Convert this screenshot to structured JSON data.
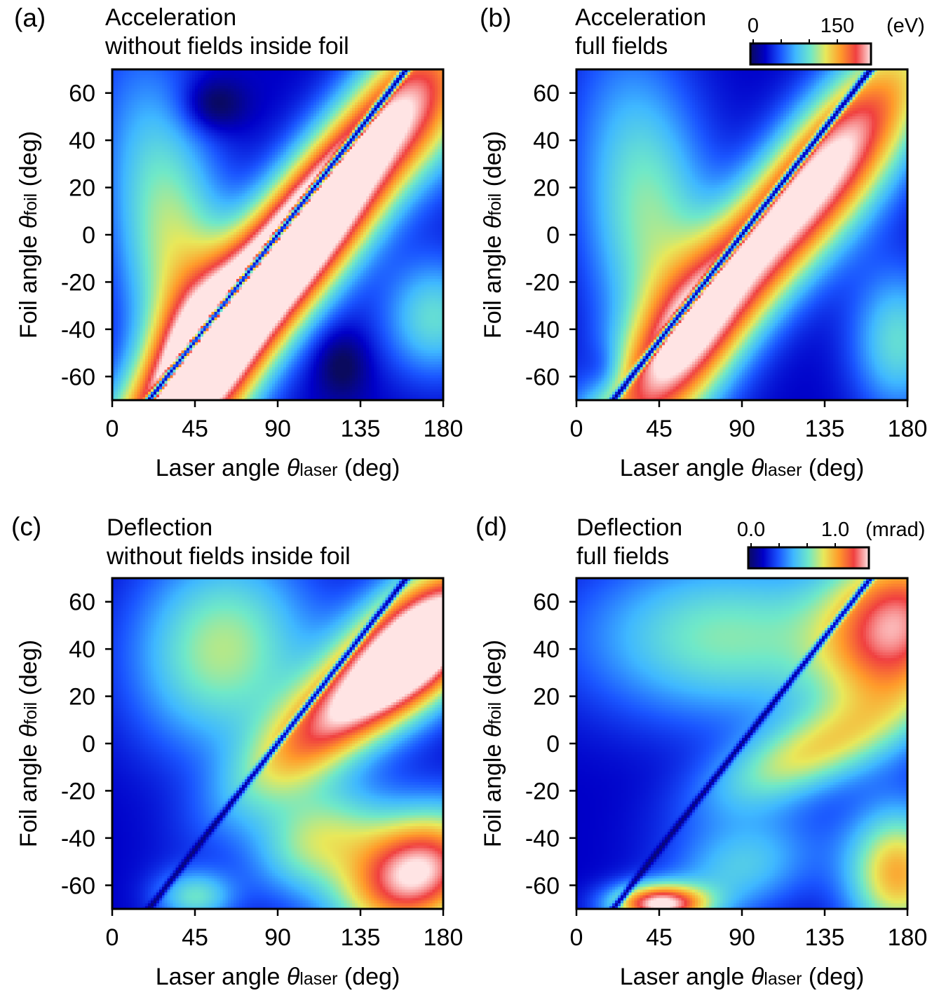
{
  "colormap": {
    "name": "rainbow",
    "stops": [
      "#0a0a5e",
      "#0000c8",
      "#1a55ff",
      "#3fb8ff",
      "#6fe8c8",
      "#e8e85a",
      "#ff9a2a",
      "#f04040",
      "#ffe4e4"
    ]
  },
  "chart_data": [
    {
      "type": "heatmap",
      "panel": "(a)",
      "title": [
        "Acceleration",
        "without fields inside foil"
      ],
      "xlabel": "Laser angle θlaser (deg)",
      "ylabel": "Foil angle θfoil (deg)",
      "xlim": [
        0,
        180
      ],
      "ylim": [
        -70,
        70
      ],
      "xticks": [
        "0",
        "45",
        "90",
        "135",
        "180"
      ],
      "yticks": [
        "60",
        "40",
        "20",
        "0",
        "-20",
        "-40",
        "-60"
      ],
      "value_range": [
        0,
        150
      ],
      "features": {
        "diagonal_ridge_peak": 150,
        "lower_left_lobe": 75,
        "lower_right_lobe": 45,
        "zero_line": "diagonal θfoil ≈ θlaser - 90"
      }
    },
    {
      "type": "heatmap",
      "panel": "(b)",
      "title": [
        "Acceleration",
        "full fields"
      ],
      "xlabel": "Laser angle θlaser (deg)",
      "ylabel": "Foil angle θfoil (deg)",
      "xlim": [
        0,
        180
      ],
      "ylim": [
        -70,
        70
      ],
      "xticks": [
        "0",
        "45",
        "90",
        "135",
        "180"
      ],
      "yticks": [
        "60",
        "40",
        "20",
        "0",
        "-20",
        "-40",
        "-60"
      ],
      "value_range": [
        0,
        150
      ],
      "colorbar": {
        "tick_labels": [
          "0",
          "150"
        ],
        "unit": "(eV)"
      },
      "features": {
        "diagonal_ridge_peak": 120,
        "lower_left_lobe": 65,
        "lower_right_lobe": 50
      }
    },
    {
      "type": "heatmap",
      "panel": "(c)",
      "title": [
        "Deflection",
        "without fields inside foil"
      ],
      "xlabel": "Laser angle θlaser (deg)",
      "ylabel": "Foil angle θfoil (deg)",
      "xlim": [
        0,
        180
      ],
      "ylim": [
        -70,
        70
      ],
      "xticks": [
        "0",
        "45",
        "90",
        "135",
        "180"
      ],
      "yticks": [
        "60",
        "40",
        "20",
        "0",
        "-20",
        "-40",
        "-60"
      ],
      "value_range": [
        0.0,
        1.2
      ],
      "features": {
        "upper_right_peak": 1.2,
        "lower_right_peak": 1.2
      }
    },
    {
      "type": "heatmap",
      "panel": "(d)",
      "title": [
        "Deflection",
        "full fields"
      ],
      "xlabel": "Laser angle θlaser (deg)",
      "ylabel": "Foil angle θfoil (deg)",
      "xlim": [
        0,
        180
      ],
      "ylim": [
        -70,
        70
      ],
      "xticks": [
        "0",
        "45",
        "90",
        "135",
        "180"
      ],
      "yticks": [
        "60",
        "40",
        "20",
        "0",
        "-20",
        "-40",
        "-60"
      ],
      "value_range": [
        0.0,
        1.2
      ],
      "colorbar": {
        "tick_labels": [
          "0.0",
          "1.0"
        ],
        "unit": "(mrad)"
      },
      "features": {
        "upper_right_peak": 0.9,
        "bottom_left_peak": 0.95,
        "lower_right_peak": 0.75
      }
    }
  ]
}
